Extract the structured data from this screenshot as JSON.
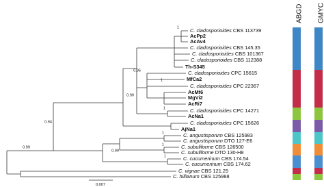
{
  "tree": {
    "leaves": [
      {
        "species": "C. cladosporioides",
        "strain": "CBS 113739"
      },
      {
        "name": "AcPp2"
      },
      {
        "name": "AcAv4"
      },
      {
        "species": "C. cladosporioides",
        "strain": "CBS 145.35"
      },
      {
        "species": "C. cladosporioides",
        "strain": "CBS 101367"
      },
      {
        "species": "C. cladosporioides",
        "strain": "CBS 112388"
      },
      {
        "name": "Th-S345"
      },
      {
        "species": "C. cladosporioides",
        "strain": "CPC 15615"
      },
      {
        "name": "MfCa2"
      },
      {
        "species": "C. cladosporioides",
        "strain": "CPC 22367"
      },
      {
        "name": "AcMt6"
      },
      {
        "name": "MgVi2"
      },
      {
        "name": "AcRi7"
      },
      {
        "species": "C. cladosporioides",
        "strain": "CPC 14271"
      },
      {
        "name": "AcNa1"
      },
      {
        "species": "C. cladosporioides",
        "strain": "CPC 15626"
      },
      {
        "name": "AjNa1"
      },
      {
        "species": "C. angustisporum",
        "strain": "CBS 125983"
      },
      {
        "species": "C. angustisporum",
        "strain": "DTO 127-E6"
      },
      {
        "species": "C. subuliforme",
        "strain": "CBS 126500"
      },
      {
        "species": "C. subuliforme",
        "strain": "DTO 130-H8"
      },
      {
        "species": "C. cucumerinum",
        "strain": "CBS 174.54"
      },
      {
        "species": "C. cucumerinum",
        "strain": "CBS 174.62"
      },
      {
        "species": "C. vignae",
        "strain": "CBS 121.25"
      },
      {
        "species": "C. hillianum",
        "strain": "CBS 125988"
      }
    ],
    "supports": [
      "1",
      "0.95",
      "1",
      "0.90",
      "1",
      "0.94",
      "0.99",
      "1",
      "0.99",
      "1",
      "1"
    ],
    "scale": "0.007"
  },
  "columns": [
    "ABGD",
    "GMYC"
  ]
}
